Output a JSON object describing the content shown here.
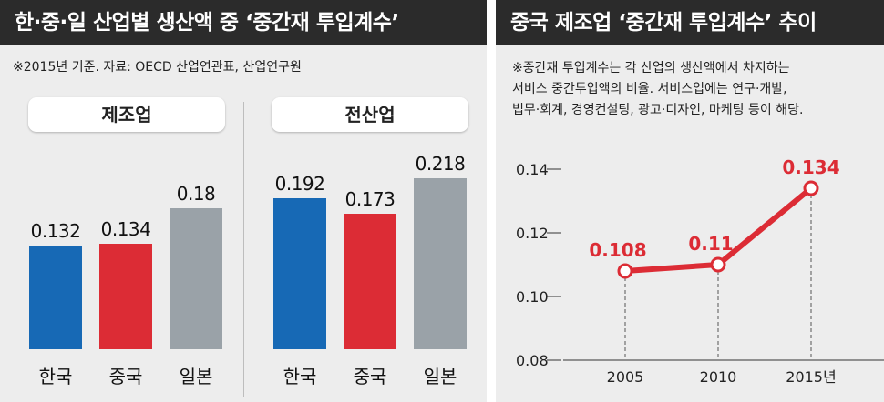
{
  "left_panel": {
    "title": "한·중·일 산업별 생산액 중 ‘중간재 투입계수’",
    "source": "※2015년 기준.  자료: OECD 산업연관표, 산업연구원"
  },
  "right_panel": {
    "title": "중국 제조업 ‘중간재 투입계수’ 추이",
    "note_lines": [
      "※중간재 투입계수는 각 산업의 생산액에서 차지하는",
      "서비스 중간투입액의 비율. 서비스업에는 연구·개발,",
      "법무·회계, 경영컨설팅, 광고·디자인, 마케팅 등이 해당."
    ]
  },
  "colors": {
    "korea": "#1769b5",
    "china": "#dc2c35",
    "japan": "#9aa2a8",
    "line": "#dc2c35"
  },
  "chart_data": [
    {
      "type": "bar",
      "title": "제조업",
      "categories": [
        "한국",
        "중국",
        "일본"
      ],
      "values": [
        0.132,
        0.134,
        0.18
      ],
      "labels": [
        "0.132",
        "0.134",
        "0.18"
      ]
    },
    {
      "type": "bar",
      "title": "전산업",
      "categories": [
        "한국",
        "중국",
        "일본"
      ],
      "values": [
        0.192,
        0.173,
        0.218
      ],
      "labels": [
        "0.192",
        "0.173",
        "0.218"
      ]
    },
    {
      "type": "line",
      "title": "중국 제조업 ‘중간재 투입계수’ 추이",
      "x": [
        "2005",
        "2010",
        "2015년"
      ],
      "values": [
        0.108,
        0.11,
        0.134
      ],
      "labels": [
        "0.108",
        "0.11",
        "0.134"
      ],
      "ylim": [
        0.08,
        0.14
      ],
      "yticks": [
        0.08,
        0.1,
        0.12,
        0.14
      ],
      "ytick_labels": [
        "0.08",
        "0.10",
        "0.12",
        "0.14"
      ]
    }
  ]
}
